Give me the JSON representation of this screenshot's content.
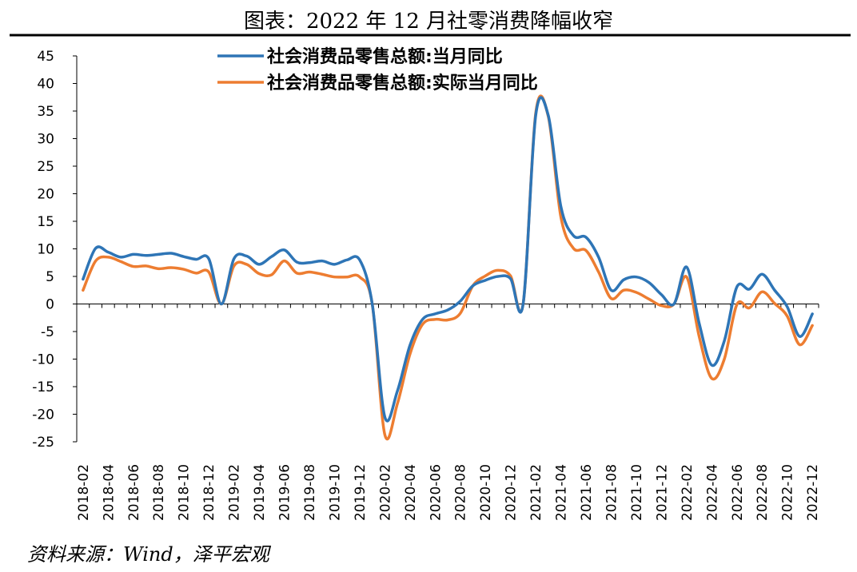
{
  "title": "图表：2022 年 12 月社零消费降幅收窄",
  "source": "资料来源：Wind，泽平宏观",
  "chart_data": {
    "type": "line",
    "ylim": [
      -25,
      45
    ],
    "yticks": [
      45,
      40,
      35,
      30,
      25,
      20,
      15,
      10,
      5,
      0,
      -5,
      -10,
      -15,
      -20,
      -25
    ],
    "x_tick_labels": [
      "2018-02",
      "2018-04",
      "2018-06",
      "2018-08",
      "2018-10",
      "2018-12",
      "2019-02",
      "2019-04",
      "2019-06",
      "2019-08",
      "2019-10",
      "2019-12",
      "2020-02",
      "2020-04",
      "2020-06",
      "2020-08",
      "2020-10",
      "2020-12",
      "2021-02",
      "2021-04",
      "2021-06",
      "2021-08",
      "2021-10",
      "2021-12",
      "2022-02",
      "2022-04",
      "2022-06",
      "2022-08",
      "2022-10",
      "2022-12"
    ],
    "x": [
      "2018-02",
      "2018-03",
      "2018-04",
      "2018-05",
      "2018-06",
      "2018-07",
      "2018-08",
      "2018-09",
      "2018-10",
      "2018-11",
      "2018-12",
      "2019-01",
      "2019-02",
      "2019-03",
      "2019-04",
      "2019-05",
      "2019-06",
      "2019-07",
      "2019-08",
      "2019-09",
      "2019-10",
      "2019-11",
      "2019-12",
      "2020-01",
      "2020-02",
      "2020-03",
      "2020-04",
      "2020-05",
      "2020-06",
      "2020-07",
      "2020-08",
      "2020-09",
      "2020-10",
      "2020-11",
      "2020-12",
      "2021-01",
      "2021-02",
      "2021-03",
      "2021-04",
      "2021-05",
      "2021-06",
      "2021-07",
      "2021-08",
      "2021-09",
      "2021-10",
      "2021-11",
      "2021-12",
      "2022-01",
      "2022-02",
      "2022-03",
      "2022-04",
      "2022-05",
      "2022-06",
      "2022-07",
      "2022-08",
      "2022-09",
      "2022-10",
      "2022-11",
      "2022-12"
    ],
    "grid": false,
    "legend_position": "top-center",
    "series": [
      {
        "name": "社会消费品零售总额:当月同比",
        "color": "#2E75B6",
        "values": [
          4.5,
          10.1,
          9.4,
          8.5,
          9.0,
          8.8,
          9.0,
          9.2,
          8.6,
          8.1,
          8.2,
          0.0,
          8.2,
          8.7,
          7.2,
          8.6,
          9.8,
          7.6,
          7.5,
          7.8,
          7.2,
          8.0,
          8.0,
          0.0,
          -20.5,
          -15.8,
          -7.5,
          -2.8,
          -1.8,
          -1.1,
          0.5,
          3.3,
          4.3,
          5.0,
          4.6,
          0.0,
          34.2,
          34.2,
          17.7,
          12.4,
          12.1,
          8.5,
          2.5,
          4.4,
          4.9,
          3.9,
          1.7,
          0.0,
          6.7,
          -3.5,
          -11.1,
          -6.7,
          3.1,
          2.7,
          5.4,
          2.5,
          -0.5,
          -5.9,
          -1.8
        ]
      },
      {
        "name": "社会消费品零售总额:实际当月同比",
        "color": "#ED7D31",
        "values": [
          2.5,
          7.8,
          8.5,
          7.7,
          6.8,
          6.9,
          6.4,
          6.6,
          6.3,
          5.6,
          5.8,
          0.0,
          6.9,
          7.2,
          5.5,
          5.3,
          7.8,
          5.6,
          5.8,
          5.4,
          4.9,
          4.9,
          4.9,
          0.0,
          -23.7,
          -18.1,
          -9.1,
          -3.7,
          -2.8,
          -2.9,
          -1.7,
          3.3,
          5.1,
          6.1,
          5.1,
          0.0,
          34.6,
          34.0,
          15.8,
          10.1,
          9.7,
          5.8,
          1.0,
          2.5,
          2.1,
          0.9,
          -0.3,
          0.0,
          4.9,
          -5.9,
          -13.5,
          -10.0,
          -0.1,
          -0.7,
          2.2,
          0.1,
          -2.2,
          -7.4,
          -3.9
        ]
      }
    ]
  }
}
